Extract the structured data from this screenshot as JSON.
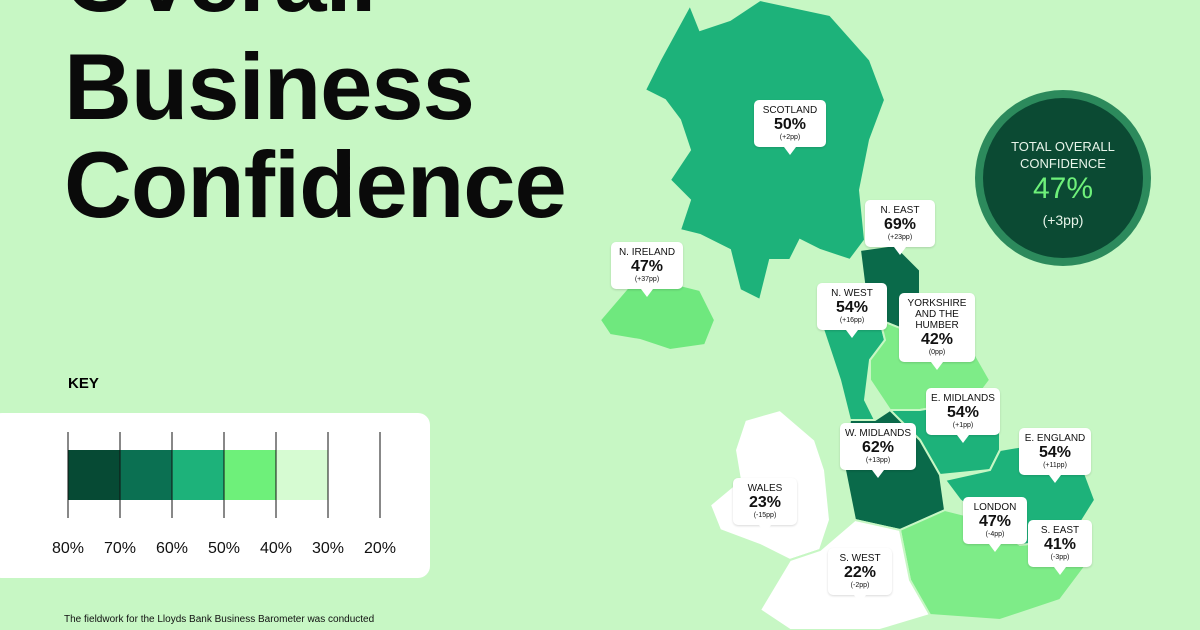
{
  "header": {
    "title_lines": [
      "Overall",
      "Business",
      "Confidence"
    ]
  },
  "regions": [
    {
      "name": "SCOTLAND",
      "value": "50%",
      "change": "(+2pp)",
      "color": "#1db27a"
    },
    {
      "name": "N. IRELAND",
      "value": "47%",
      "change": "(+37pp)",
      "color": "#6fe87e"
    },
    {
      "name": "N. EAST",
      "value": "69%",
      "change": "(+23pp)",
      "color": "#0a6a4a"
    },
    {
      "name": "N. WEST",
      "value": "54%",
      "change": "(+16pp)",
      "color": "#1db27a"
    },
    {
      "name": "YORKSHIRE AND THE HUMBER",
      "value": "42%",
      "change": "(0pp)",
      "color": "#7eec88"
    },
    {
      "name": "E. MIDLANDS",
      "value": "54%",
      "change": "(+1pp)",
      "color": "#1db27a"
    },
    {
      "name": "W. MIDLANDS",
      "value": "62%",
      "change": "(+13pp)",
      "color": "#0a6a4a"
    },
    {
      "name": "E. ENGLAND",
      "value": "54%",
      "change": "(+11pp)",
      "color": "#1db27a"
    },
    {
      "name": "WALES",
      "value": "23%",
      "change": "(-15pp)",
      "color": "#ffffff"
    },
    {
      "name": "LONDON",
      "value": "47%",
      "change": "(-4pp)",
      "color": "#6fe87e"
    },
    {
      "name": "S. EAST",
      "value": "41%",
      "change": "(-3pp)",
      "color": "#7eec88"
    },
    {
      "name": "S. WEST",
      "value": "22%",
      "change": "(-2pp)",
      "color": "#ffffff"
    }
  ],
  "total": {
    "label": "TOTAL OVERALL CONFIDENCE",
    "value": "47%",
    "change": "(+3pp)"
  },
  "key": {
    "title": "KEY",
    "labels": [
      "80%",
      "70%",
      "60%",
      "50%",
      "40%",
      "30%",
      "20%"
    ],
    "colors": [
      "#064a34",
      "#0b7052",
      "#1db27a",
      "#6ef07a",
      "#d6fbd2"
    ]
  },
  "footer": {
    "text": "The fieldwork for the Lloyds Bank Business Barometer was conducted"
  }
}
